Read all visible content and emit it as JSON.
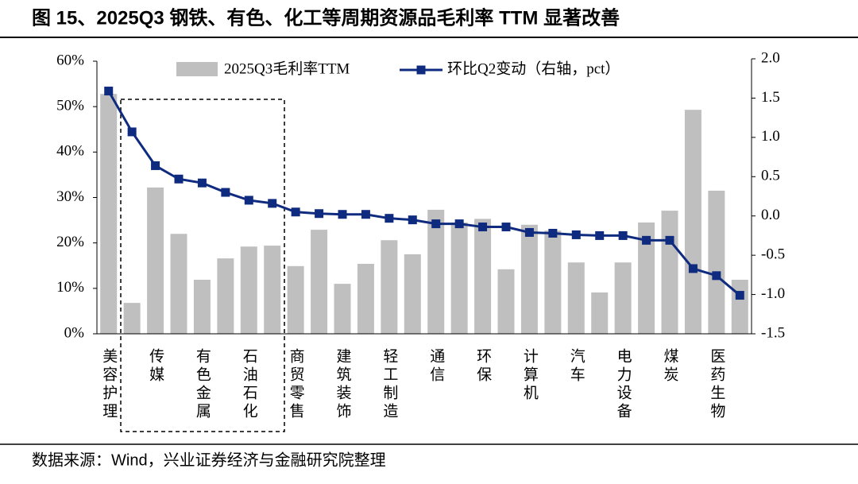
{
  "chart_data": {
    "type": "bar_line",
    "title": "图 15、2025Q3 钢铁、有色、化工等周期资源品毛利率 TTM 显著改善",
    "note": "数据来源：Wind，兴业证券经济与金融研究院整理",
    "categories": [
      "美容护理",
      null,
      "传媒",
      null,
      "有色金属",
      null,
      "石油石化",
      null,
      "商贸零售",
      null,
      "建筑装饰",
      null,
      "轻工制造",
      null,
      "通信",
      null,
      "环保",
      null,
      "计算机",
      null,
      "汽车",
      null,
      "电力设备",
      null,
      "煤炭",
      null,
      "医药生物",
      null
    ],
    "series": [
      {
        "name": "2025Q3毛利率TTM",
        "type": "bar",
        "color": "#bfbfbf",
        "values": [
          52.8,
          6.8,
          32.2,
          22.0,
          11.9,
          16.6,
          19.2,
          19.4,
          14.9,
          22.9,
          11.0,
          15.4,
          20.6,
          17.5,
          27.3,
          24.5,
          25.3,
          14.2,
          24.0,
          22.7,
          15.7,
          9.1,
          15.7,
          24.5,
          27.1,
          49.3,
          31.5,
          11.9
        ]
      },
      {
        "name": "环比Q2变动（右轴，pct）",
        "type": "line",
        "axis": "y2",
        "color": "#0f2b80",
        "values": [
          1.59,
          1.07,
          0.64,
          0.47,
          0.42,
          0.3,
          0.2,
          0.16,
          0.05,
          0.03,
          0.02,
          0.02,
          -0.03,
          -0.05,
          -0.1,
          -0.1,
          -0.14,
          -0.14,
          -0.21,
          -0.22,
          -0.24,
          -0.25,
          -0.25,
          -0.31,
          -0.31,
          -0.67,
          -0.76,
          -1.01
        ]
      }
    ],
    "ylim": [
      0,
      60
    ],
    "yticks": [
      {
        "value": 0,
        "label": "0%"
      },
      {
        "value": 10,
        "label": "10%"
      },
      {
        "value": 20,
        "label": "20%"
      },
      {
        "value": 30,
        "label": "30%"
      },
      {
        "value": 40,
        "label": "40%"
      },
      {
        "value": 50,
        "label": "50%"
      },
      {
        "value": 60,
        "label": "60%"
      }
    ],
    "y2lim": [
      -1.5,
      2.0
    ],
    "y2ticks": [
      {
        "value": 2.0,
        "label": "2.0"
      },
      1.5,
      {
        "value": 1.0,
        "label": "1.0"
      },
      0.5,
      {
        "value": 0.0,
        "label": "0.0"
      },
      -0.5,
      {
        "value": -1.0,
        "label": "-1.0"
      },
      -1.5
    ],
    "legend": "top"
  }
}
